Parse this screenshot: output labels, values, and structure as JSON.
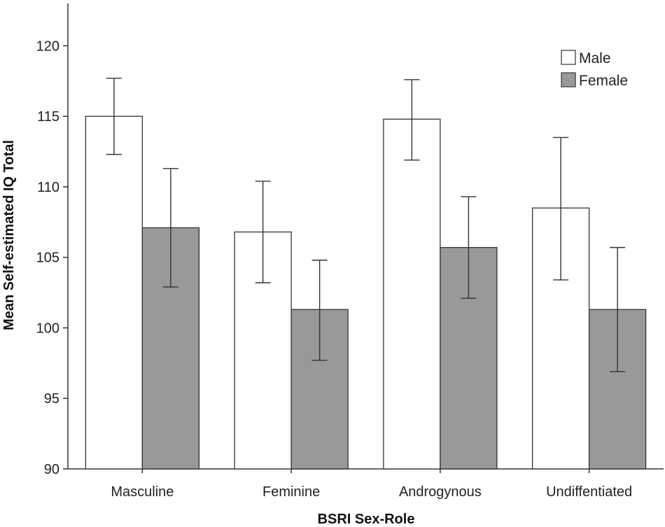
{
  "chart_data": {
    "type": "bar",
    "title": "",
    "xlabel": "BSRI Sex-Role",
    "ylabel": "Mean Self-estimated IQ Total",
    "categories": [
      "Masculine",
      "Feminine",
      "Androgynous",
      "Undiffentiated"
    ],
    "ylim": [
      90,
      123
    ],
    "yticks": [
      90,
      95,
      100,
      105,
      110,
      115,
      120
    ],
    "grid": false,
    "legend_position": "top-right",
    "series": [
      {
        "name": "Male",
        "color": "#ffffff",
        "values": [
          115.0,
          106.8,
          114.8,
          108.5
        ],
        "error_low": [
          112.3,
          103.2,
          111.9,
          103.4
        ],
        "error_high": [
          117.7,
          110.4,
          117.6,
          113.5
        ]
      },
      {
        "name": "Female",
        "color": "#999999",
        "values": [
          107.1,
          101.3,
          105.7,
          101.3
        ],
        "error_low": [
          102.9,
          97.7,
          102.1,
          96.9
        ],
        "error_high": [
          111.3,
          104.8,
          109.3,
          105.7
        ]
      }
    ]
  }
}
